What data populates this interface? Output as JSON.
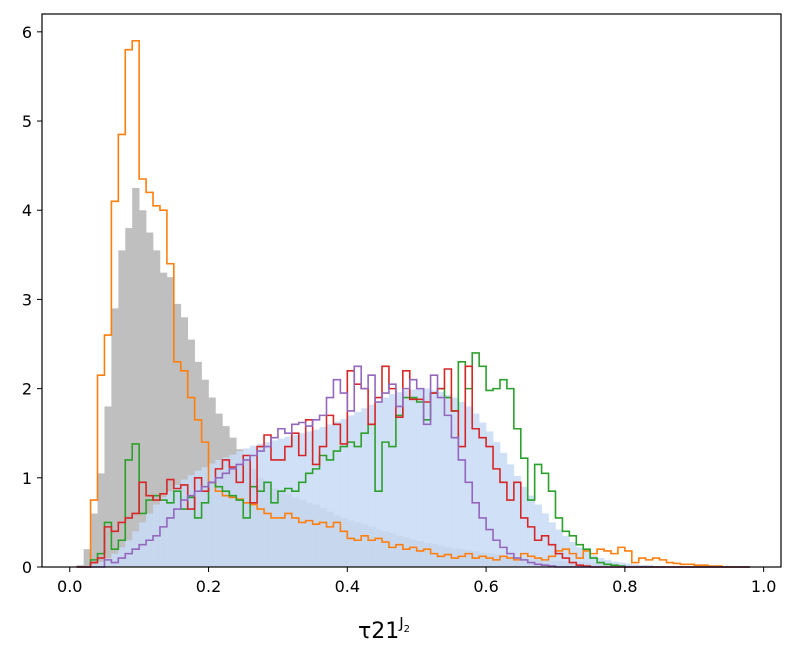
{
  "chart_data": {
    "type": "histogram",
    "xlabel": "τ21",
    "xlabel_superscript": "J",
    "xlabel_sub_superscript": "2",
    "xlim": [
      -0.04,
      1.025
    ],
    "ylim": [
      0,
      6.2
    ],
    "xticks": [
      0.0,
      0.2,
      0.4,
      0.6,
      0.8,
      1.0
    ],
    "xtick_labels": [
      "0.0",
      "0.2",
      "0.4",
      "0.6",
      "0.8",
      "1.0"
    ],
    "yticks": [
      0,
      1,
      2,
      3,
      4,
      5,
      6
    ],
    "ytick_labels": [
      "0",
      "1",
      "2",
      "3",
      "4",
      "5",
      "6"
    ],
    "grid": false,
    "legend": "none",
    "bin_start": 0.01,
    "bin_width": 0.01,
    "series": [
      {
        "style": "filled",
        "color": "#bfbfbf",
        "values": [
          0.02,
          0.2,
          0.6,
          1.05,
          1.8,
          2.9,
          3.55,
          3.8,
          4.25,
          4.0,
          3.75,
          3.55,
          3.3,
          3.25,
          2.95,
          2.8,
          2.55,
          2.3,
          2.1,
          1.9,
          1.72,
          1.58,
          1.45,
          1.32,
          1.2,
          1.1,
          1.0,
          0.95,
          0.88,
          0.85,
          0.82,
          0.78,
          0.75,
          0.72,
          0.7,
          0.66,
          0.62,
          0.58,
          0.55,
          0.52,
          0.5,
          0.48,
          0.45,
          0.42,
          0.4,
          0.38,
          0.35,
          0.33,
          0.31,
          0.29,
          0.27,
          0.26,
          0.24,
          0.22,
          0.21,
          0.2,
          0.19,
          0.18,
          0.16,
          0.15,
          0.14,
          0.13,
          0.12,
          0.11,
          0.1,
          0.09,
          0.09,
          0.08,
          0.07,
          0.07,
          0.06,
          0.06,
          0.05,
          0.05,
          0.04,
          0.04,
          0.03,
          0.03,
          0.03,
          0.02,
          0.02,
          0.02,
          0.02,
          0.01,
          0.01,
          0.01,
          0.01,
          0.01,
          0,
          0,
          0,
          0,
          0,
          0,
          0,
          0,
          0
        ]
      },
      {
        "style": "filled",
        "color": "#c8daf6",
        "opacity": 0.85,
        "values": [
          0,
          0.01,
          0.03,
          0.06,
          0.1,
          0.15,
          0.22,
          0.3,
          0.4,
          0.5,
          0.6,
          0.7,
          0.78,
          0.85,
          0.92,
          0.98,
          1.03,
          1.08,
          1.12,
          1.16,
          1.2,
          1.23,
          1.26,
          1.3,
          1.33,
          1.36,
          1.38,
          1.4,
          1.42,
          1.44,
          1.46,
          1.48,
          1.5,
          1.52,
          1.54,
          1.57,
          1.6,
          1.63,
          1.66,
          1.7,
          1.74,
          1.78,
          1.82,
          1.86,
          1.9,
          1.94,
          1.96,
          1.98,
          1.99,
          2.0,
          2.0,
          1.98,
          1.96,
          1.93,
          1.9,
          1.85,
          1.8,
          1.72,
          1.62,
          1.52,
          1.4,
          1.28,
          1.15,
          1.02,
          0.9,
          0.8,
          0.7,
          0.6,
          0.5,
          0.42,
          0.35,
          0.28,
          0.22,
          0.17,
          0.13,
          0.1,
          0.08,
          0.06,
          0.05,
          0.04,
          0.03,
          0.02,
          0.02,
          0.01,
          0.01,
          0.01,
          0.01,
          0,
          0,
          0,
          0,
          0,
          0,
          0,
          0,
          0,
          0
        ]
      },
      {
        "style": "step",
        "color": "#ff7f0e",
        "values": [
          0,
          0,
          0.75,
          2.15,
          2.6,
          4.1,
          4.85,
          5.8,
          5.9,
          4.35,
          4.2,
          4.05,
          4.0,
          3.4,
          2.3,
          2.2,
          1.9,
          1.65,
          1.4,
          0.95,
          0.85,
          0.8,
          0.78,
          0.76,
          0.72,
          0.7,
          0.65,
          0.6,
          0.55,
          0.55,
          0.6,
          0.55,
          0.5,
          0.52,
          0.48,
          0.5,
          0.45,
          0.5,
          0.4,
          0.32,
          0.3,
          0.35,
          0.3,
          0.32,
          0.28,
          0.22,
          0.25,
          0.2,
          0.22,
          0.18,
          0.2,
          0.15,
          0.12,
          0.14,
          0.1,
          0.12,
          0.15,
          0.1,
          0.12,
          0.1,
          0.08,
          0.12,
          0.1,
          0.08,
          0.15,
          0.12,
          0.1,
          0.08,
          0.12,
          0.18,
          0.2,
          0.15,
          0.1,
          0.18,
          0.15,
          0.2,
          0.18,
          0.15,
          0.22,
          0.18,
          0.05,
          0.1,
          0.08,
          0.1,
          0.08,
          0.05,
          0.04,
          0.03,
          0.03,
          0.02,
          0.02,
          0.01,
          0.01,
          0,
          0,
          0,
          0
        ]
      },
      {
        "style": "step",
        "color": "#2ca02c",
        "values": [
          0,
          0,
          0.08,
          0.15,
          0.5,
          0.2,
          0.3,
          1.2,
          1.38,
          0.6,
          0.75,
          0.8,
          0.75,
          0.72,
          0.85,
          0.65,
          0.78,
          0.55,
          0.72,
          0.95,
          0.9,
          0.85,
          0.8,
          0.75,
          0.55,
          0.9,
          0.85,
          0.95,
          0.72,
          0.85,
          0.88,
          0.85,
          0.95,
          1.05,
          1.1,
          1.25,
          1.2,
          1.3,
          1.35,
          1.4,
          1.35,
          1.5,
          1.6,
          0.85,
          1.4,
          1.35,
          1.7,
          1.9,
          1.9,
          1.85,
          1.65,
          1.95,
          2.0,
          1.9,
          1.75,
          2.3,
          2.0,
          2.4,
          2.25,
          1.98,
          2.0,
          2.1,
          2.0,
          1.55,
          1.22,
          0.75,
          1.15,
          1.05,
          0.85,
          0.55,
          0.4,
          0.35,
          0.25,
          0.2,
          0.1,
          0.05,
          0.03,
          0.02,
          0.01,
          0,
          0,
          0,
          0,
          0,
          0,
          0,
          0,
          0,
          0,
          0,
          0,
          0,
          0,
          0,
          0,
          0,
          0
        ]
      },
      {
        "style": "step",
        "color": "#d62728",
        "values": [
          0,
          0,
          0.05,
          0.1,
          0.45,
          0.4,
          0.5,
          0.55,
          0.6,
          0.95,
          0.8,
          0.75,
          0.82,
          0.98,
          0.88,
          0.92,
          0.65,
          1.0,
          0.85,
          0.95,
          1.1,
          1.2,
          1.12,
          0.95,
          1.25,
          0.72,
          1.35,
          1.48,
          1.2,
          1.2,
          1.35,
          1.5,
          1.25,
          1.65,
          1.15,
          1.35,
          1.7,
          1.6,
          1.38,
          2.2,
          2.05,
          2.0,
          1.6,
          1.9,
          2.25,
          2.0,
          1.68,
          2.2,
          1.88,
          1.88,
          1.85,
          1.95,
          2.0,
          2.22,
          1.75,
          1.35,
          2.25,
          1.55,
          1.45,
          1.35,
          1.1,
          0.95,
          0.75,
          0.95,
          0.55,
          0.45,
          0.3,
          0.35,
          0.25,
          0.15,
          0.1,
          0.05,
          0.02,
          0.01,
          0,
          0,
          0,
          0,
          0,
          0,
          0,
          0,
          0,
          0,
          0,
          0,
          0,
          0,
          0,
          0,
          0,
          0,
          0,
          0,
          0,
          0,
          0
        ]
      },
      {
        "style": "step",
        "color": "#9467bd",
        "values": [
          0,
          0,
          0,
          0,
          0.08,
          0.05,
          0.1,
          0.15,
          0.2,
          0.25,
          0.3,
          0.35,
          0.45,
          0.55,
          0.65,
          0.75,
          0.8,
          0.85,
          0.9,
          0.95,
          1.0,
          1.05,
          1.1,
          1.15,
          1.2,
          1.25,
          1.3,
          1.35,
          1.45,
          1.55,
          1.5,
          1.6,
          1.62,
          1.58,
          1.65,
          1.7,
          1.9,
          2.1,
          1.95,
          1.75,
          2.25,
          2.0,
          2.15,
          1.85,
          1.95,
          2.05,
          1.8,
          2.0,
          2.1,
          2.0,
          1.6,
          2.15,
          1.9,
          1.7,
          1.45,
          1.2,
          0.95,
          0.72,
          0.55,
          0.42,
          0.3,
          0.22,
          0.15,
          0.1,
          0.08,
          0.05,
          0.03,
          0.02,
          0.01,
          0,
          0,
          0,
          0,
          0,
          0,
          0,
          0,
          0,
          0,
          0,
          0,
          0,
          0,
          0,
          0,
          0,
          0,
          0,
          0,
          0,
          0,
          0,
          0,
          0,
          0,
          0,
          0
        ]
      }
    ]
  }
}
